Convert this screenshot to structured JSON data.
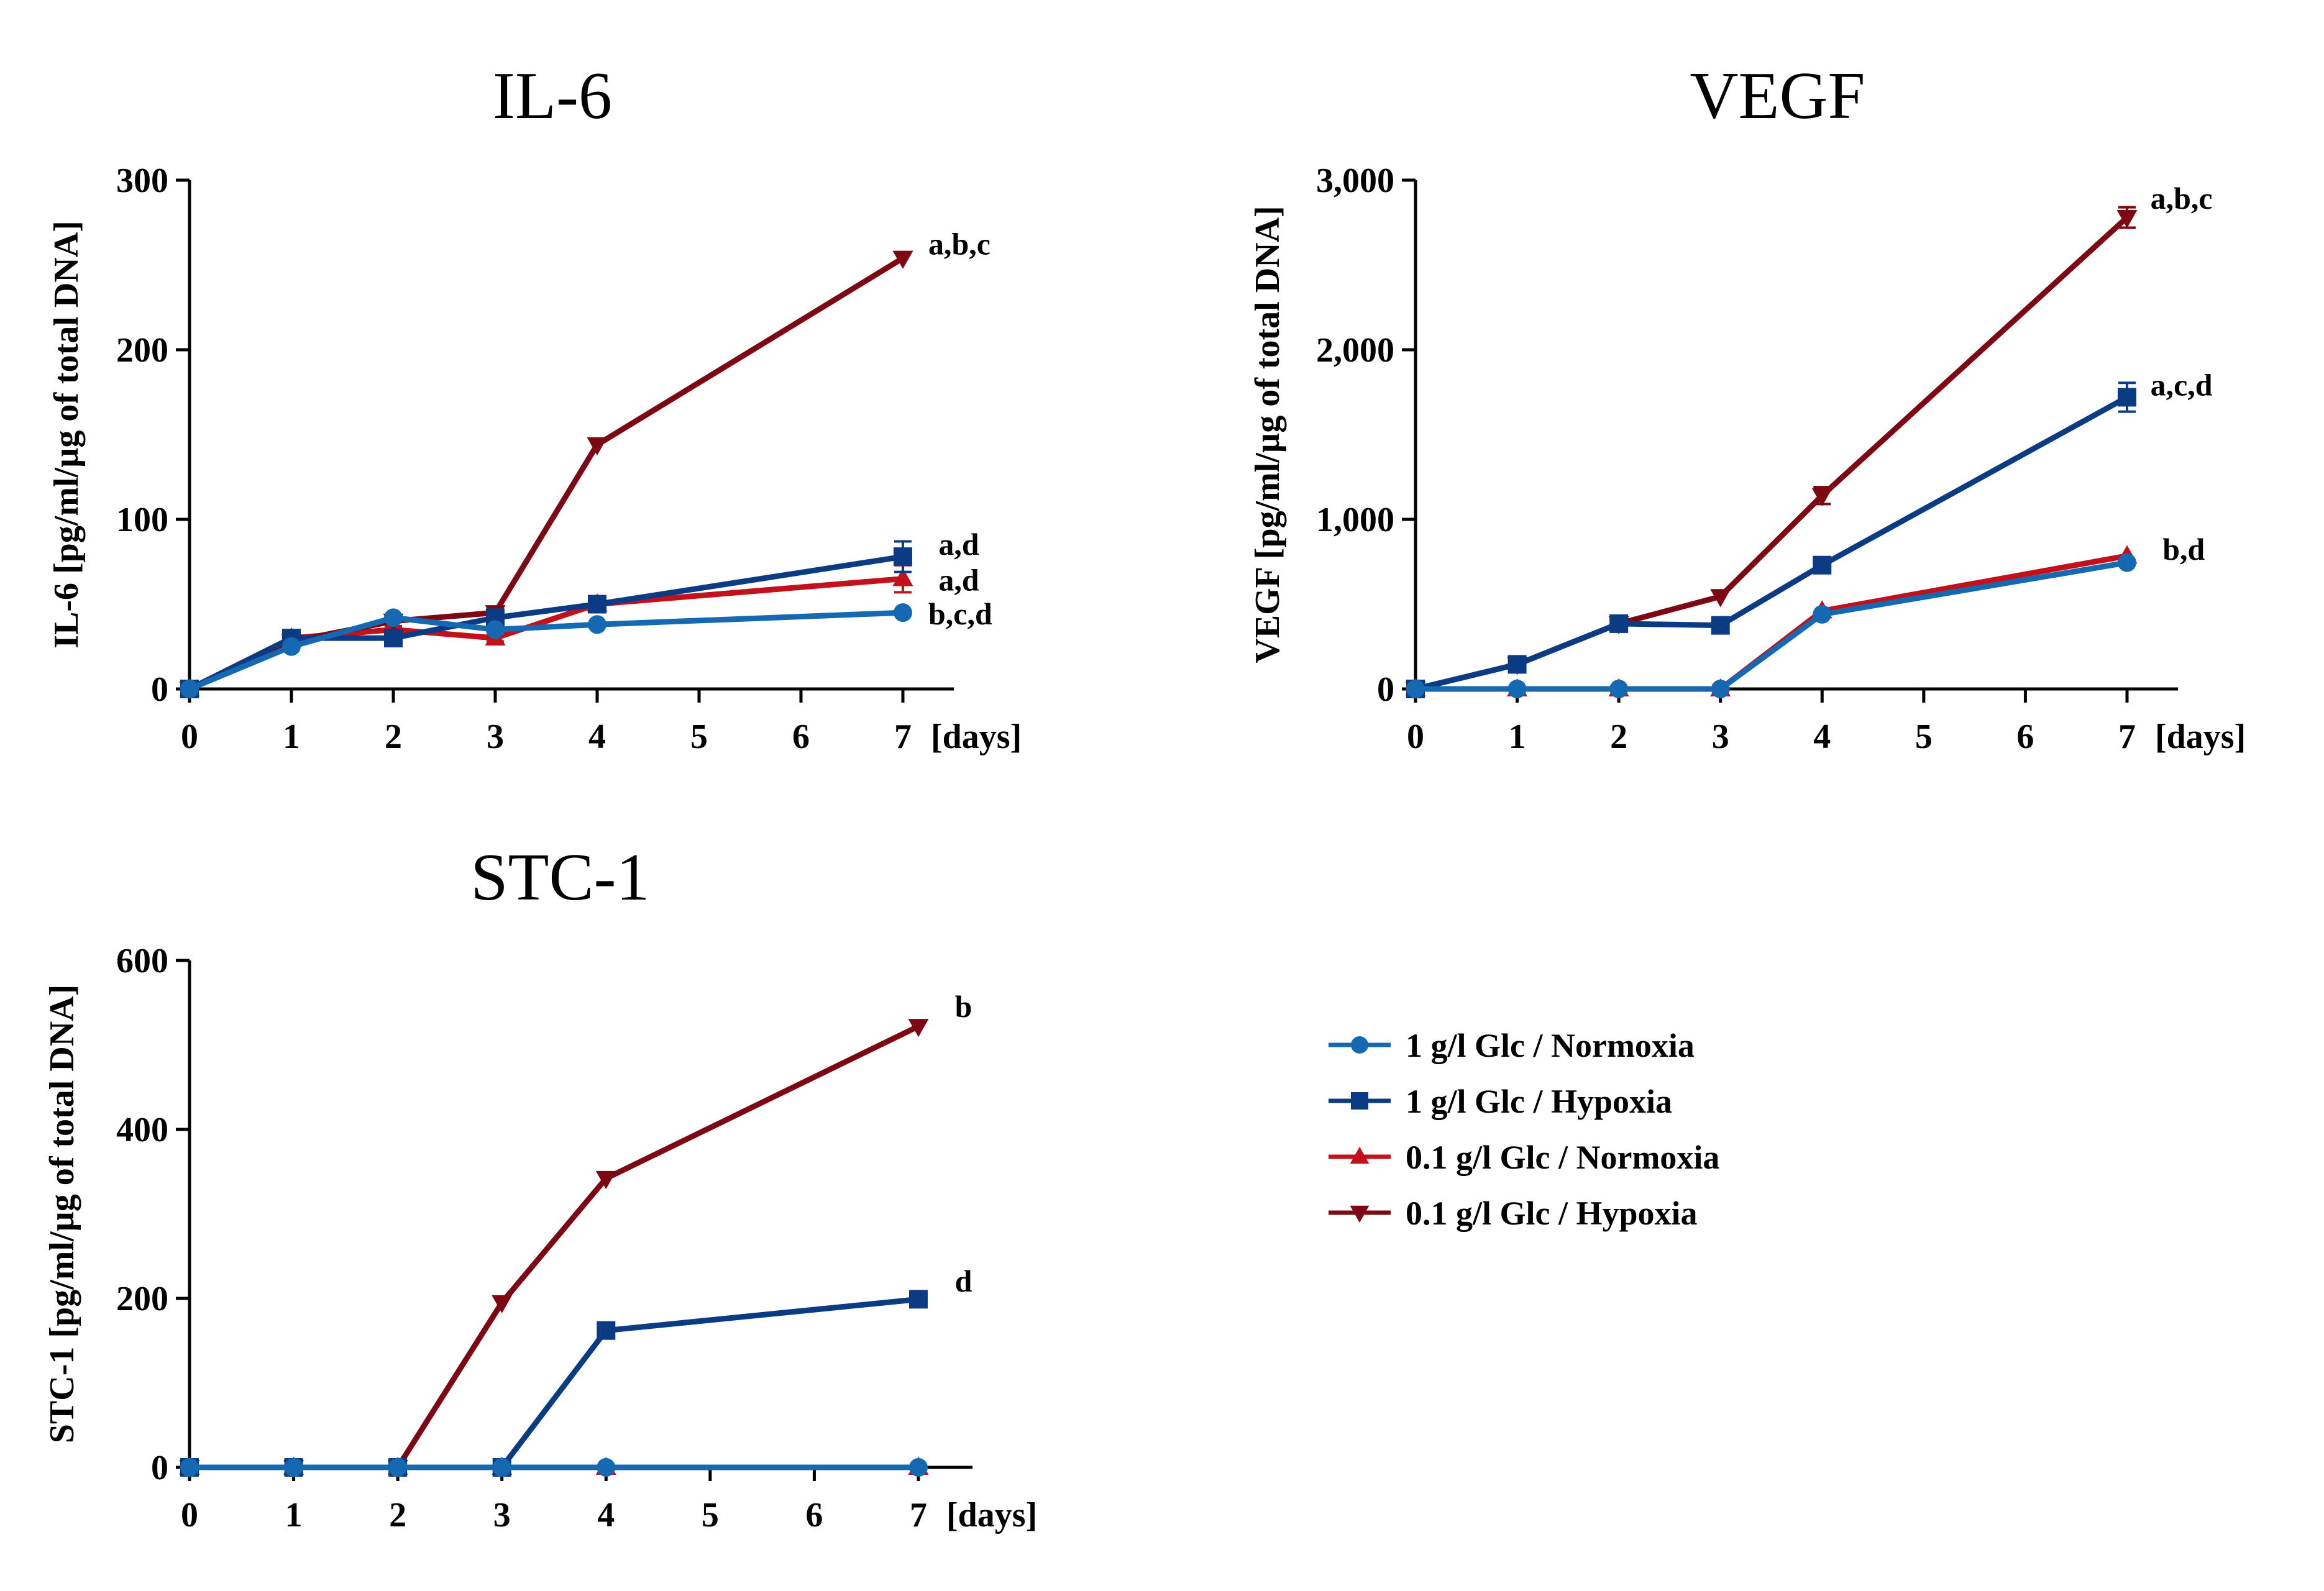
{
  "colors": {
    "n1": "#1469B2",
    "h1": "#0B3C83",
    "n01": "#C2111B",
    "h01": "#7D0712",
    "axis": "#000000"
  },
  "legend": {
    "items": [
      {
        "key": "n1",
        "label": "1 g/l Glc / Normoxia",
        "marker": "circle"
      },
      {
        "key": "h1",
        "label": "1 g/l Glc / Hypoxia",
        "marker": "square"
      },
      {
        "key": "n01",
        "label": "0.1 g/l Glc / Normoxia",
        "marker": "triangle-up"
      },
      {
        "key": "h01",
        "label": "0.1 g/l Glc / Hypoxia",
        "marker": "triangle-down"
      }
    ]
  },
  "chart_data": [
    {
      "id": "il6",
      "type": "line",
      "title": "IL-6",
      "ylabel": "IL-6 [pg/ml/µg of total DNA]",
      "xlabel": "[days]",
      "x_ticks": [
        0,
        1,
        2,
        3,
        4,
        5,
        6,
        7
      ],
      "y_ticks": [
        0,
        100,
        200,
        300
      ],
      "y_tick_labels": [
        "0",
        "100",
        "200",
        "300"
      ],
      "xlim": [
        0,
        7.5
      ],
      "ylim": [
        0,
        300
      ],
      "series": [
        {
          "key": "n1",
          "name": "1 g/l Glc / Normoxia",
          "x": [
            0,
            1,
            2,
            3,
            4,
            7
          ],
          "y": [
            0,
            25,
            42,
            35,
            38,
            45
          ]
        },
        {
          "key": "h1",
          "name": "1 g/l Glc / Hypoxia",
          "x": [
            0,
            1,
            2,
            3,
            4,
            7
          ],
          "y": [
            0,
            30,
            30,
            42,
            50,
            78
          ],
          "err": [
            0,
            2,
            3,
            3,
            2,
            9
          ]
        },
        {
          "key": "n01",
          "name": "0.1 g/l Glc / Normoxia",
          "x": [
            0,
            1,
            2,
            3,
            4,
            7
          ],
          "y": [
            0,
            30,
            35,
            30,
            50,
            65
          ],
          "err": [
            0,
            2,
            2,
            2,
            2,
            8
          ]
        },
        {
          "key": "h01",
          "name": "0.1 g/l Glc / Hypoxia",
          "x": [
            0,
            1,
            2,
            3,
            4,
            7
          ],
          "y": [
            0,
            28,
            40,
            45,
            144,
            254
          ]
        }
      ],
      "annotations": [
        {
          "text": "a,b,c",
          "x": 7.25,
          "y": 262
        },
        {
          "text": "a,d",
          "x": 7.35,
          "y": 85
        },
        {
          "text": "a,d",
          "x": 7.35,
          "y": 64
        },
        {
          "text": "b,c,d",
          "x": 7.25,
          "y": 44
        }
      ]
    },
    {
      "id": "vegf",
      "type": "line",
      "title": "VEGF",
      "ylabel": "VEGF [pg/ml/µg of total DNA]",
      "xlabel": "[days]",
      "x_ticks": [
        0,
        1,
        2,
        3,
        4,
        5,
        6,
        7
      ],
      "y_ticks": [
        0,
        1000,
        2000,
        3000
      ],
      "y_tick_labels": [
        "0",
        "1,000",
        "2,000",
        "3,000"
      ],
      "xlim": [
        0,
        7.5
      ],
      "ylim": [
        0,
        3000
      ],
      "series": [
        {
          "key": "n1",
          "name": "1 g/l Glc / Normoxia",
          "x": [
            0,
            1,
            2,
            3,
            4,
            7
          ],
          "y": [
            0,
            0,
            0,
            0,
            440,
            745
          ]
        },
        {
          "key": "h1",
          "name": "1 g/l Glc / Hypoxia",
          "x": [
            0,
            1,
            2,
            3,
            4,
            7
          ],
          "y": [
            0,
            145,
            385,
            375,
            730,
            1720
          ],
          "err": [
            0,
            0,
            0,
            0,
            0,
            85
          ]
        },
        {
          "key": "n01",
          "name": "0.1 g/l Glc / Normoxia",
          "x": [
            0,
            1,
            2,
            3,
            4,
            7
          ],
          "y": [
            0,
            0,
            0,
            0,
            460,
            785
          ]
        },
        {
          "key": "h01",
          "name": "0.1 g/l Glc / Hypoxia",
          "x": [
            0,
            1,
            2,
            3,
            4,
            7
          ],
          "y": [
            0,
            145,
            385,
            545,
            1140,
            2780
          ],
          "err": [
            0,
            0,
            0,
            0,
            50,
            60
          ]
        }
      ],
      "annotations": [
        {
          "text": "a,b,c",
          "x": 7.23,
          "y": 2890
        },
        {
          "text": "a,c,d",
          "x": 7.23,
          "y": 1790
        },
        {
          "text": "b,d",
          "x": 7.35,
          "y": 820
        }
      ]
    },
    {
      "id": "stc1",
      "type": "line",
      "title": "STC-1",
      "ylabel": "STC-1 [pg/ml/µg of total DNA]",
      "xlabel": "[days]",
      "x_ticks": [
        0,
        1,
        2,
        3,
        4,
        5,
        6,
        7
      ],
      "y_ticks": [
        0,
        200,
        400,
        600
      ],
      "y_tick_labels": [
        "0",
        "200",
        "400",
        "600"
      ],
      "xlim": [
        0,
        7.5
      ],
      "ylim": [
        0,
        600
      ],
      "series": [
        {
          "key": "n1",
          "name": "1 g/l Glc / Normoxia",
          "x": [
            0,
            1,
            2,
            3,
            4,
            7
          ],
          "y": [
            0,
            0,
            0,
            0,
            0,
            0
          ]
        },
        {
          "key": "h1",
          "name": "1 g/l Glc / Hypoxia",
          "x": [
            0,
            1,
            2,
            3,
            4,
            7
          ],
          "y": [
            0,
            0,
            0,
            0,
            162,
            199
          ]
        },
        {
          "key": "n01",
          "name": "0.1 g/l Glc / Normoxia",
          "x": [
            0,
            1,
            2,
            3,
            4,
            7
          ],
          "y": [
            0,
            0,
            0,
            0,
            0,
            0
          ]
        },
        {
          "key": "h01",
          "name": "0.1 g/l Glc / Hypoxia",
          "x": [
            0,
            1,
            2,
            3,
            4,
            7
          ],
          "y": [
            0,
            0,
            0,
            195,
            342,
            522
          ]
        }
      ],
      "annotations": [
        {
          "text": "b",
          "x": 7.35,
          "y": 545
        },
        {
          "text": "d",
          "x": 7.35,
          "y": 220
        }
      ]
    }
  ]
}
